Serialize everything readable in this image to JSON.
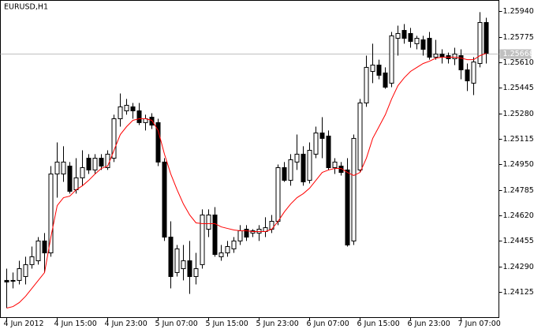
{
  "chart_data": {
    "type": "candlestick",
    "title": "EURUSD,H1",
    "categories": [
      "4 Jun 2012",
      null,
      null,
      null,
      null,
      null,
      null,
      null,
      "4 Jun 15:00",
      null,
      null,
      null,
      null,
      null,
      null,
      null,
      "4 Jun 23:00",
      null,
      null,
      null,
      null,
      null,
      null,
      null,
      "5 Jun 07:00",
      null,
      null,
      null,
      null,
      null,
      null,
      null,
      "5 Jun 15:00",
      null,
      null,
      null,
      null,
      null,
      null,
      null,
      "5 Jun 23:00",
      null,
      null,
      null,
      null,
      null,
      null,
      null,
      "6 Jun 07:00",
      null,
      null,
      null,
      null,
      null,
      null,
      null,
      "6 Jun 15:00",
      null,
      null,
      null,
      null,
      null,
      null,
      null,
      "6 Jun 23:00",
      null,
      null,
      null,
      null,
      null,
      null,
      null,
      "7 Jun 07:00",
      null,
      null,
      null,
      null
    ],
    "open": [
      1.242,
      1.242,
      1.242,
      1.24225,
      1.24302,
      1.24327,
      1.24455,
      1.24378,
      1.24888,
      1.24888,
      1.24939,
      1.24786,
      1.24863,
      1.2499,
      1.24914,
      1.2499,
      1.24929,
      1.2499,
      1.25245,
      1.25296,
      1.25322,
      1.25296,
      1.2522,
      1.25255,
      1.2522,
      1.24965,
      1.2448,
      1.24251,
      1.24276,
      1.24327,
      1.24225,
      1.24302,
      1.24531,
      1.24623,
      1.24353,
      1.24378,
      1.24404,
      1.24455,
      1.24531,
      1.24506,
      1.24506,
      1.24516,
      1.24531,
      1.24582,
      1.24929,
      1.24847,
      1.24965,
      1.25016,
      1.24847,
      1.25016,
      1.25153,
      1.25133,
      1.24929,
      1.24939,
      1.24914,
      1.24455,
      1.24914,
      1.25347,
      1.25551,
      1.25592,
      1.25541,
      1.25475,
      1.25765,
      1.25816,
      1.25796,
      1.2573,
      1.25755,
      1.25765,
      1.25643,
      1.25663,
      1.25653,
      1.25633,
      1.25653,
      1.25561,
      1.25475,
      1.25602,
      1.25867
    ],
    "high": [
      1.24276,
      1.24251,
      1.24327,
      1.24353,
      1.24419,
      1.2448,
      1.24506,
      1.24939,
      1.25092,
      1.25067,
      1.24965,
      1.2499,
      1.25041,
      1.25016,
      1.25016,
      1.25016,
      1.25041,
      1.25271,
      1.25408,
      1.25373,
      1.25347,
      1.25347,
      1.25271,
      1.25281,
      1.25245,
      1.2499,
      1.24582,
      1.24429,
      1.24429,
      1.24455,
      1.24378,
      1.24659,
      1.24659,
      1.24674,
      1.24429,
      1.24455,
      1.2448,
      1.24557,
      1.24557,
      1.24531,
      1.24557,
      1.24608,
      1.24623,
      1.24949,
      1.24965,
      1.25016,
      1.25143,
      1.25067,
      1.25092,
      1.25194,
      1.25255,
      1.25169,
      1.2499,
      1.24965,
      1.2499,
      1.25143,
      1.25373,
      1.25653,
      1.2573,
      1.25627,
      1.25577,
      1.25806,
      1.25847,
      1.25857,
      1.25832,
      1.25781,
      1.25781,
      1.25806,
      1.25755,
      1.25694,
      1.25673,
      1.25704,
      1.25694,
      1.25602,
      1.25643,
      1.25934,
      1.25898
    ],
    "low": [
      1.24021,
      1.24149,
      1.24174,
      1.24174,
      1.24276,
      1.24302,
      1.24251,
      1.24353,
      1.24735,
      1.24837,
      1.24761,
      1.24761,
      1.24812,
      1.24888,
      1.24888,
      1.24914,
      1.24914,
      1.24965,
      1.25194,
      1.25271,
      1.25245,
      1.25204,
      1.25169,
      1.25179,
      1.24939,
      1.24455,
      1.24149,
      1.24225,
      1.242,
      1.24113,
      1.24174,
      1.24276,
      1.2448,
      1.24353,
      1.24327,
      1.24353,
      1.24378,
      1.24429,
      1.24455,
      1.2448,
      1.24455,
      1.2448,
      1.24506,
      1.24557,
      1.24837,
      1.24812,
      1.24914,
      1.24812,
      1.24827,
      1.2499,
      1.2499,
      1.24914,
      1.24888,
      1.24878,
      1.24419,
      1.24429,
      1.24898,
      1.25322,
      1.25475,
      1.255,
      1.25439,
      1.25449,
      1.25653,
      1.2573,
      1.25704,
      1.25694,
      1.25653,
      1.25627,
      1.25627,
      1.25602,
      1.25602,
      1.25592,
      1.255,
      1.25424,
      1.25398,
      1.25577,
      1.25602
    ],
    "close": [
      1.2419,
      1.24195,
      1.24276,
      1.24302,
      1.24353,
      1.24455,
      1.24378,
      1.24888,
      1.24965,
      1.24965,
      1.24776,
      1.24863,
      1.24929,
      1.24914,
      1.2499,
      1.24939,
      1.25016,
      1.25245,
      1.25322,
      1.25332,
      1.25296,
      1.2522,
      1.25245,
      1.25204,
      1.24965,
      1.2448,
      1.24225,
      1.24404,
      1.24327,
      1.24225,
      1.24276,
      1.24623,
      1.24623,
      1.24368,
      1.24378,
      1.24419,
      1.24455,
      1.24521,
      1.2448,
      1.24521,
      1.24531,
      1.24541,
      1.24582,
      1.24929,
      1.24847,
      1.2498,
      1.25016,
      1.24837,
      1.25041,
      1.25153,
      1.25118,
      1.24929,
      1.24965,
      1.24898,
      1.24429,
      1.25118,
      1.25347,
      1.25577,
      1.25592,
      1.25526,
      1.25449,
      1.25781,
      1.25796,
      1.25765,
      1.25745,
      1.25765,
      1.25694,
      1.25643,
      1.25663,
      1.25643,
      1.25633,
      1.25663,
      1.25561,
      1.2549,
      1.25612,
      1.25867,
      1.25668
    ],
    "up_color": "#ffffff",
    "down_color": "#000000",
    "outline_color": "#000000",
    "ma": {
      "color": "#ff0000",
      "values": [
        1.24021,
        1.24031,
        1.24057,
        1.24098,
        1.24149,
        1.242,
        1.24251,
        1.2448,
        1.24684,
        1.24735,
        1.24745,
        1.24786,
        1.24812,
        1.24847,
        1.24888,
        1.24924,
        1.24939,
        1.25041,
        1.25143,
        1.25194,
        1.25235,
        1.25245,
        1.25245,
        1.25235,
        1.25169,
        1.25016,
        1.24888,
        1.24786,
        1.24694,
        1.24623,
        1.24572,
        1.24567,
        1.24567,
        1.24567,
        1.24546,
        1.24536,
        1.24526,
        1.24521,
        1.24521,
        1.24516,
        1.24516,
        1.24516,
        1.24531,
        1.24582,
        1.24643,
        1.24694,
        1.24735,
        1.24761,
        1.24796,
        1.24847,
        1.24898,
        1.24914,
        1.24924,
        1.24924,
        1.24898,
        1.24878,
        1.24898,
        1.2499,
        1.25118,
        1.25194,
        1.25271,
        1.25373,
        1.25459,
        1.2551,
        1.25551,
        1.25577,
        1.25602,
        1.25617,
        1.25637,
        1.25643,
        1.25643,
        1.25643,
        1.25637,
        1.25627,
        1.25627,
        1.25653,
        1.25668
      ]
    },
    "current_price": 1.25668,
    "current_price_color": "#c0c0c0",
    "ylim": [
      1.2396,
      1.2601
    ],
    "yticks": [
      {
        "value": 1.2594,
        "label": "1.25940"
      },
      1.25775,
      {
        "value": 1.2561,
        "label": "1.25610"
      },
      1.25445,
      {
        "value": 1.2528,
        "label": "1.25280"
      },
      1.25115,
      {
        "value": 1.2495,
        "label": "1.24950"
      },
      1.24785,
      {
        "value": 1.2462,
        "label": "1.24620"
      },
      1.24455,
      {
        "value": 1.2429,
        "label": "1.24290"
      },
      1.24125
    ],
    "grid": false
  }
}
